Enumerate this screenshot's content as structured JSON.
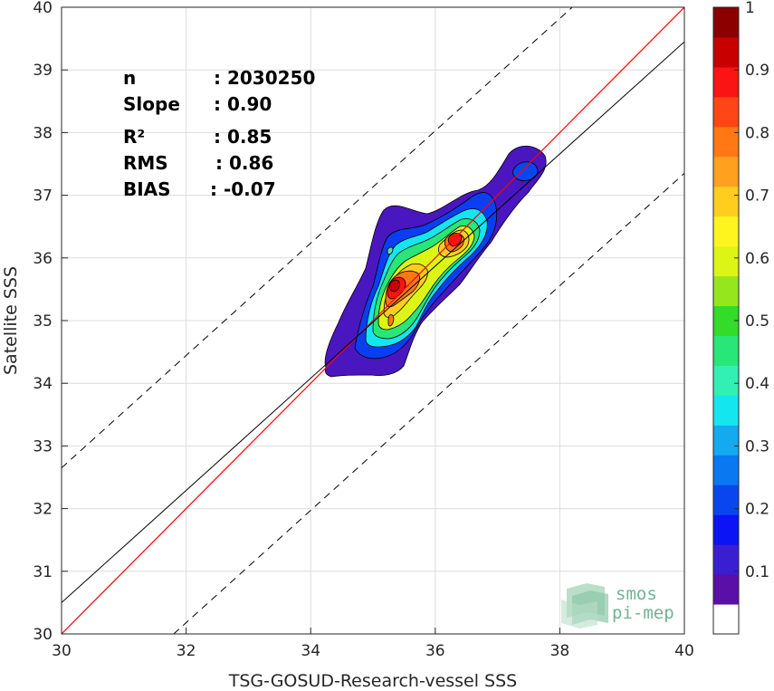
{
  "chart_data": {
    "type": "heatmap",
    "subtype": "density-contour-scatter",
    "xlabel": "TSG-GOSUD-Research-vessel SSS",
    "ylabel": "Satellite SSS",
    "xlim": [
      30,
      40
    ],
    "ylim": [
      30,
      40
    ],
    "xticks": [
      "30",
      "32",
      "34",
      "36",
      "38",
      "40"
    ],
    "yticks": [
      "30",
      "31",
      "32",
      "33",
      "34",
      "35",
      "36",
      "37",
      "38",
      "39",
      "40"
    ],
    "grid": true,
    "stats": [
      {
        "label": "n",
        "value": ": 2030250"
      },
      {
        "label": "Slope",
        "value": ": 0.90"
      },
      {
        "label": "R²",
        "value": ": 0.85"
      },
      {
        "label": "RMS",
        "value": ": 0.86"
      },
      {
        "label": "BIAS",
        "value": ": -0.07"
      }
    ],
    "lines": {
      "identity": {
        "slope": 1.0,
        "intercept": 0,
        "color": "#ff0000"
      },
      "fit": {
        "x": [
          30,
          40
        ],
        "y": [
          30.5,
          39.45
        ],
        "color": "#000000"
      },
      "upper_bound": {
        "x": [
          30,
          38.2
        ],
        "y": [
          32.65,
          40
        ],
        "style": "dashed"
      },
      "lower_bound": {
        "x": [
          31.8,
          40
        ],
        "y": [
          30,
          37.35
        ],
        "style": "dashed"
      }
    },
    "density_peaks": [
      {
        "x": 35.3,
        "y": 35.45,
        "level": 0.95
      },
      {
        "x": 36.3,
        "y": 36.3,
        "level": 0.9
      },
      {
        "x": 37.45,
        "y": 37.45,
        "level": 0.2
      }
    ],
    "contour_levels": [
      0.05,
      0.1,
      0.2,
      0.3,
      0.4,
      0.5,
      0.6,
      0.7,
      0.8,
      0.9
    ],
    "colorbar": {
      "range": [
        0,
        1
      ],
      "ticks": [
        "0.1",
        "0.2",
        "0.3",
        "0.4",
        "0.5",
        "0.6",
        "0.7",
        "0.8",
        "0.9",
        "1"
      ],
      "colors": [
        "#ffffff",
        "#5a0fa8",
        "#3a1fd2",
        "#0a14f5",
        "#0a46f0",
        "#0a78f0",
        "#14aaf0",
        "#14e6f0",
        "#32f0b4",
        "#28e678",
        "#32dc28",
        "#96e61e",
        "#dcf514",
        "#fff51e",
        "#ffcd1e",
        "#ffa01e",
        "#ff7814",
        "#ff4614",
        "#fa1414",
        "#c80000",
        "#8c0000"
      ]
    }
  },
  "logo": {
    "line1": "smos",
    "line2": "pi-mep"
  }
}
